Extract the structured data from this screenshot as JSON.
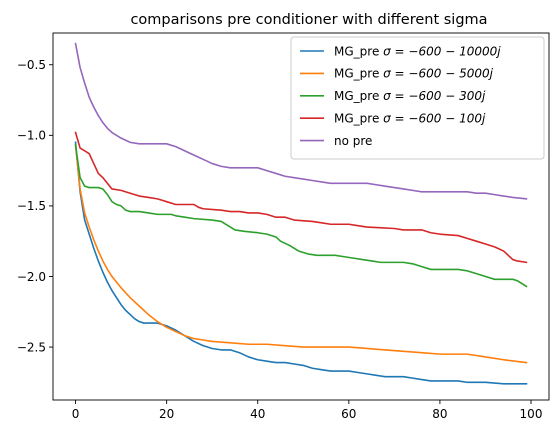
{
  "chart_data": {
    "type": "line",
    "title": "comparisons pre conditioner with different sigma",
    "xlabel": "",
    "ylabel": "",
    "xlim": [
      -4.95,
      103.95
    ],
    "ylim": [
      -2.875,
      -0.275
    ],
    "xticks": [
      0,
      20,
      40,
      60,
      80,
      100
    ],
    "yticks": [
      -2.5,
      -2.0,
      -1.5,
      -1.0,
      -0.5
    ],
    "ytick_labels": [
      "−2.5",
      "−2.0",
      "−1.5",
      "−1.0",
      "−0.5"
    ],
    "grid": false,
    "legend_position": "top-right",
    "series": [
      {
        "name": "MG_pre σ = −600 − 10000j",
        "legend": {
          "prefix": "MG_pre ",
          "math": "σ = −600 − 10000j"
        },
        "color": "#1f77b4",
        "points": [
          [
            0,
            -1.05
          ],
          [
            1,
            -1.4
          ],
          [
            2,
            -1.6
          ],
          [
            3,
            -1.7
          ],
          [
            4,
            -1.8
          ],
          [
            5,
            -1.89
          ],
          [
            6,
            -1.97
          ],
          [
            7,
            -2.04
          ],
          [
            8,
            -2.1
          ],
          [
            9,
            -2.15
          ],
          [
            10,
            -2.2
          ],
          [
            11,
            -2.24
          ],
          [
            12,
            -2.27
          ],
          [
            13,
            -2.3
          ],
          [
            14,
            -2.32
          ],
          [
            15,
            -2.33
          ],
          [
            17,
            -2.33
          ],
          [
            18,
            -2.33
          ],
          [
            19,
            -2.34
          ],
          [
            20,
            -2.35
          ],
          [
            22,
            -2.38
          ],
          [
            24,
            -2.42
          ],
          [
            26,
            -2.46
          ],
          [
            28,
            -2.49
          ],
          [
            30,
            -2.51
          ],
          [
            32,
            -2.52
          ],
          [
            34,
            -2.52
          ],
          [
            36,
            -2.54
          ],
          [
            38,
            -2.57
          ],
          [
            40,
            -2.59
          ],
          [
            42,
            -2.6
          ],
          [
            44,
            -2.61
          ],
          [
            46,
            -2.61
          ],
          [
            48,
            -2.62
          ],
          [
            50,
            -2.63
          ],
          [
            52,
            -2.65
          ],
          [
            54,
            -2.66
          ],
          [
            56,
            -2.67
          ],
          [
            58,
            -2.67
          ],
          [
            60,
            -2.67
          ],
          [
            62,
            -2.68
          ],
          [
            64,
            -2.69
          ],
          [
            66,
            -2.7
          ],
          [
            68,
            -2.71
          ],
          [
            70,
            -2.71
          ],
          [
            72,
            -2.71
          ],
          [
            74,
            -2.72
          ],
          [
            76,
            -2.73
          ],
          [
            78,
            -2.74
          ],
          [
            80,
            -2.74
          ],
          [
            84,
            -2.74
          ],
          [
            86,
            -2.75
          ],
          [
            88,
            -2.75
          ],
          [
            90,
            -2.75
          ],
          [
            94,
            -2.76
          ],
          [
            99,
            -2.76
          ]
        ]
      },
      {
        "name": "MG_pre σ = −600 − 5000j",
        "legend": {
          "prefix": "MG_pre ",
          "math": "σ = −600 − 5000j"
        },
        "color": "#ff7f0e",
        "points": [
          [
            0,
            -1.07
          ],
          [
            1,
            -1.38
          ],
          [
            2,
            -1.55
          ],
          [
            3,
            -1.65
          ],
          [
            4,
            -1.74
          ],
          [
            5,
            -1.82
          ],
          [
            6,
            -1.89
          ],
          [
            7,
            -1.95
          ],
          [
            8,
            -2.0
          ],
          [
            9,
            -2.04
          ],
          [
            10,
            -2.08
          ],
          [
            12,
            -2.15
          ],
          [
            14,
            -2.21
          ],
          [
            16,
            -2.27
          ],
          [
            18,
            -2.32
          ],
          [
            20,
            -2.36
          ],
          [
            22,
            -2.39
          ],
          [
            24,
            -2.42
          ],
          [
            26,
            -2.44
          ],
          [
            28,
            -2.45
          ],
          [
            30,
            -2.46
          ],
          [
            34,
            -2.47
          ],
          [
            38,
            -2.48
          ],
          [
            42,
            -2.48
          ],
          [
            46,
            -2.49
          ],
          [
            50,
            -2.5
          ],
          [
            54,
            -2.5
          ],
          [
            60,
            -2.5
          ],
          [
            64,
            -2.51
          ],
          [
            68,
            -2.52
          ],
          [
            72,
            -2.53
          ],
          [
            76,
            -2.54
          ],
          [
            80,
            -2.55
          ],
          [
            86,
            -2.55
          ],
          [
            90,
            -2.57
          ],
          [
            94,
            -2.59
          ],
          [
            99,
            -2.61
          ]
        ]
      },
      {
        "name": "MG_pre σ = −600 − 300j",
        "legend": {
          "prefix": "MG_pre ",
          "math": "σ = −600 − 300j"
        },
        "color": "#2ca02c",
        "points": [
          [
            0,
            -1.07
          ],
          [
            1,
            -1.3
          ],
          [
            2,
            -1.36
          ],
          [
            3,
            -1.37
          ],
          [
            5,
            -1.37
          ],
          [
            6,
            -1.38
          ],
          [
            7,
            -1.42
          ],
          [
            8,
            -1.47
          ],
          [
            9,
            -1.49
          ],
          [
            10,
            -1.5
          ],
          [
            11,
            -1.53
          ],
          [
            12,
            -1.54
          ],
          [
            14,
            -1.54
          ],
          [
            16,
            -1.55
          ],
          [
            18,
            -1.56
          ],
          [
            21,
            -1.56
          ],
          [
            22,
            -1.57
          ],
          [
            24,
            -1.58
          ],
          [
            26,
            -1.59
          ],
          [
            30,
            -1.6
          ],
          [
            32,
            -1.61
          ],
          [
            33,
            -1.63
          ],
          [
            34,
            -1.65
          ],
          [
            35,
            -1.67
          ],
          [
            37,
            -1.68
          ],
          [
            40,
            -1.69
          ],
          [
            42,
            -1.7
          ],
          [
            44,
            -1.72
          ],
          [
            45,
            -1.75
          ],
          [
            47,
            -1.78
          ],
          [
            49,
            -1.82
          ],
          [
            51,
            -1.84
          ],
          [
            53,
            -1.85
          ],
          [
            57,
            -1.85
          ],
          [
            59,
            -1.86
          ],
          [
            61,
            -1.87
          ],
          [
            63,
            -1.88
          ],
          [
            65,
            -1.89
          ],
          [
            67,
            -1.9
          ],
          [
            72,
            -1.9
          ],
          [
            74,
            -1.91
          ],
          [
            76,
            -1.93
          ],
          [
            78,
            -1.95
          ],
          [
            84,
            -1.95
          ],
          [
            86,
            -1.96
          ],
          [
            88,
            -1.98
          ],
          [
            90,
            -2.0
          ],
          [
            92,
            -2.02
          ],
          [
            96,
            -2.02
          ],
          [
            97,
            -2.03
          ],
          [
            98,
            -2.05
          ],
          [
            99,
            -2.07
          ]
        ]
      },
      {
        "name": "MG_pre σ = −600 − 100j",
        "legend": {
          "prefix": "MG_pre ",
          "math": "σ = −600 − 100j"
        },
        "color": "#d62728",
        "points": [
          [
            0,
            -0.98
          ],
          [
            1,
            -1.09
          ],
          [
            2,
            -1.11
          ],
          [
            3,
            -1.13
          ],
          [
            4,
            -1.2
          ],
          [
            5,
            -1.27
          ],
          [
            6,
            -1.3
          ],
          [
            7,
            -1.34
          ],
          [
            8,
            -1.38
          ],
          [
            10,
            -1.39
          ],
          [
            12,
            -1.41
          ],
          [
            14,
            -1.43
          ],
          [
            16,
            -1.44
          ],
          [
            18,
            -1.45
          ],
          [
            19,
            -1.46
          ],
          [
            20,
            -1.47
          ],
          [
            22,
            -1.49
          ],
          [
            26,
            -1.49
          ],
          [
            27,
            -1.51
          ],
          [
            28,
            -1.52
          ],
          [
            32,
            -1.53
          ],
          [
            34,
            -1.54
          ],
          [
            36,
            -1.54
          ],
          [
            38,
            -1.55
          ],
          [
            40,
            -1.55
          ],
          [
            42,
            -1.56
          ],
          [
            44,
            -1.58
          ],
          [
            46,
            -1.58
          ],
          [
            48,
            -1.6
          ],
          [
            52,
            -1.61
          ],
          [
            54,
            -1.62
          ],
          [
            56,
            -1.63
          ],
          [
            60,
            -1.63
          ],
          [
            62,
            -1.64
          ],
          [
            64,
            -1.65
          ],
          [
            70,
            -1.66
          ],
          [
            72,
            -1.67
          ],
          [
            76,
            -1.67
          ],
          [
            78,
            -1.69
          ],
          [
            80,
            -1.7
          ],
          [
            84,
            -1.71
          ],
          [
            86,
            -1.73
          ],
          [
            88,
            -1.75
          ],
          [
            90,
            -1.77
          ],
          [
            92,
            -1.79
          ],
          [
            94,
            -1.82
          ],
          [
            95,
            -1.85
          ],
          [
            96,
            -1.88
          ],
          [
            97,
            -1.89
          ],
          [
            99,
            -1.9
          ]
        ]
      },
      {
        "name": "no pre",
        "legend": {
          "prefix": "no pre",
          "math": ""
        },
        "color": "#9467bd",
        "points": [
          [
            0,
            -0.35
          ],
          [
            1,
            -0.52
          ],
          [
            2,
            -0.63
          ],
          [
            3,
            -0.73
          ],
          [
            4,
            -0.8
          ],
          [
            5,
            -0.86
          ],
          [
            6,
            -0.91
          ],
          [
            7,
            -0.95
          ],
          [
            8,
            -0.98
          ],
          [
            10,
            -1.02
          ],
          [
            12,
            -1.05
          ],
          [
            14,
            -1.06
          ],
          [
            20,
            -1.06
          ],
          [
            22,
            -1.08
          ],
          [
            24,
            -1.11
          ],
          [
            26,
            -1.14
          ],
          [
            28,
            -1.17
          ],
          [
            30,
            -1.2
          ],
          [
            32,
            -1.22
          ],
          [
            34,
            -1.23
          ],
          [
            36,
            -1.23
          ],
          [
            40,
            -1.23
          ],
          [
            42,
            -1.25
          ],
          [
            44,
            -1.27
          ],
          [
            46,
            -1.29
          ],
          [
            48,
            -1.3
          ],
          [
            50,
            -1.31
          ],
          [
            52,
            -1.32
          ],
          [
            54,
            -1.33
          ],
          [
            56,
            -1.34
          ],
          [
            60,
            -1.34
          ],
          [
            64,
            -1.34
          ],
          [
            66,
            -1.35
          ],
          [
            68,
            -1.36
          ],
          [
            70,
            -1.37
          ],
          [
            72,
            -1.38
          ],
          [
            74,
            -1.39
          ],
          [
            76,
            -1.4
          ],
          [
            82,
            -1.4
          ],
          [
            86,
            -1.4
          ],
          [
            88,
            -1.41
          ],
          [
            90,
            -1.41
          ],
          [
            92,
            -1.42
          ],
          [
            94,
            -1.43
          ],
          [
            96,
            -1.44
          ],
          [
            99,
            -1.45
          ]
        ]
      }
    ]
  }
}
